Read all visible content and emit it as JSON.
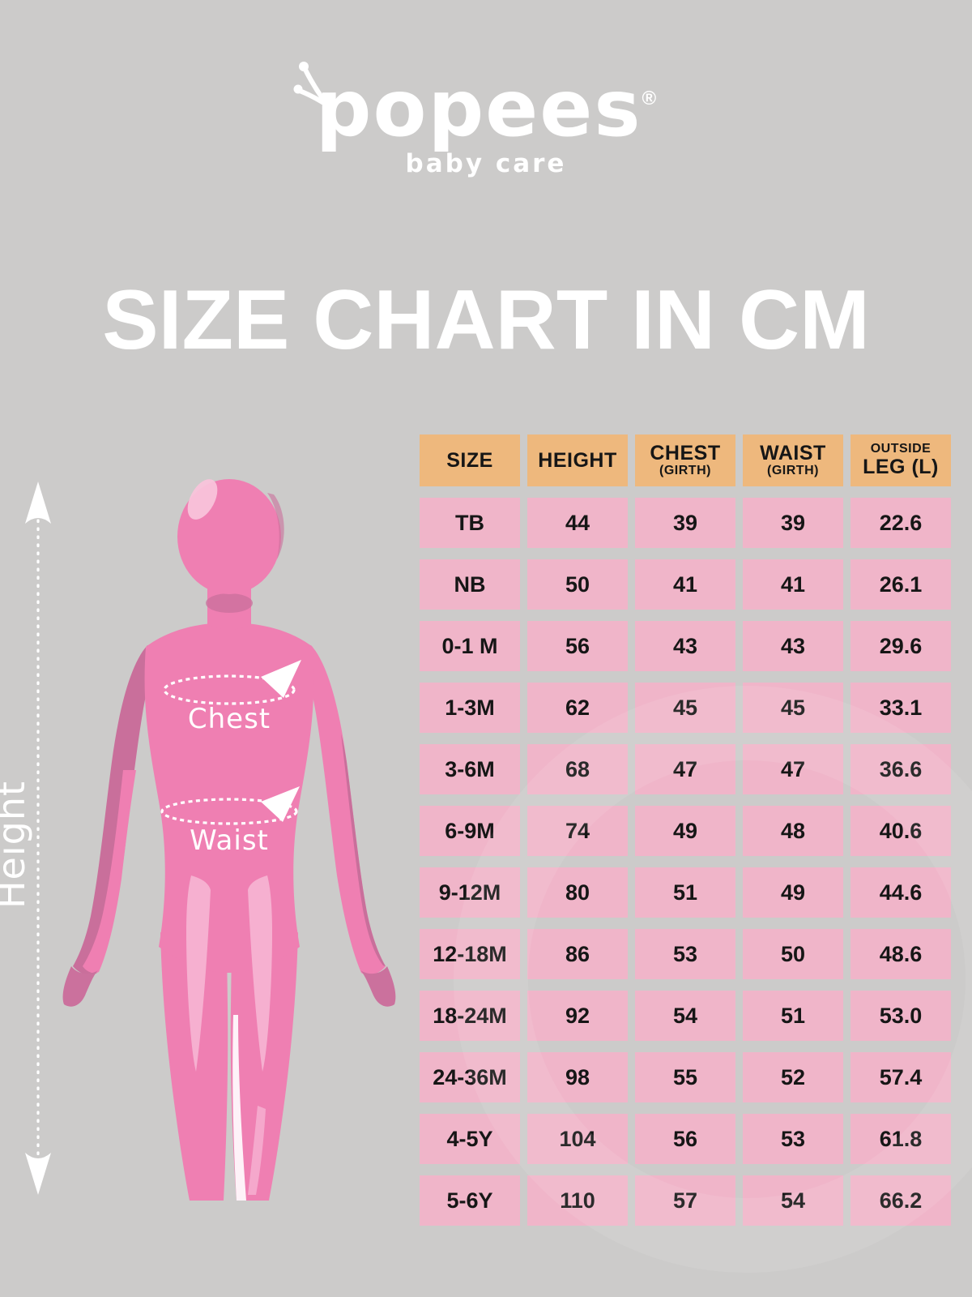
{
  "logo": {
    "brand": "popees",
    "registered": "®",
    "tagline": "baby care"
  },
  "title": "SIZE CHART IN CM",
  "figure": {
    "height_label": "Height",
    "chest_label": "Chest",
    "waist_label": "Waist"
  },
  "colors": {
    "background": "#cccbca",
    "header_bg": "#eeb87d",
    "cell_bg": "#f0b5c9",
    "cell_text": "#161616",
    "body_pink": "#ef7fb2",
    "body_pink_dark": "#c96f9b",
    "body_pink_light": "#f6b3d2",
    "white": "#ffffff"
  },
  "chart_data": {
    "type": "table",
    "title": "SIZE CHART IN CM",
    "unit": "cm",
    "columns": [
      {
        "main": "SIZE"
      },
      {
        "main": "HEIGHT"
      },
      {
        "main": "CHEST",
        "sub": "(GIRTH)",
        "sub_position": "below"
      },
      {
        "main": "WAIST",
        "sub": "(GIRTH)",
        "sub_position": "below"
      },
      {
        "main": "LEG (L)",
        "sub": "OUTSIDE",
        "sub_position": "above"
      }
    ],
    "rows": [
      [
        "TB",
        "44",
        "39",
        "39",
        "22.6"
      ],
      [
        "NB",
        "50",
        "41",
        "41",
        "26.1"
      ],
      [
        "0-1 M",
        "56",
        "43",
        "43",
        "29.6"
      ],
      [
        "1-3M",
        "62",
        "45",
        "45",
        "33.1"
      ],
      [
        "3-6M",
        "68",
        "47",
        "47",
        "36.6"
      ],
      [
        "6-9M",
        "74",
        "49",
        "48",
        "40.6"
      ],
      [
        "9-12M",
        "80",
        "51",
        "49",
        "44.6"
      ],
      [
        "12-18M",
        "86",
        "53",
        "50",
        "48.6"
      ],
      [
        "18-24M",
        "92",
        "54",
        "51",
        "53.0"
      ],
      [
        "24-36M",
        "98",
        "55",
        "52",
        "57.4"
      ],
      [
        "4-5Y",
        "104",
        "56",
        "53",
        "61.8"
      ],
      [
        "5-6Y",
        "110",
        "57",
        "54",
        "66.2"
      ]
    ]
  }
}
